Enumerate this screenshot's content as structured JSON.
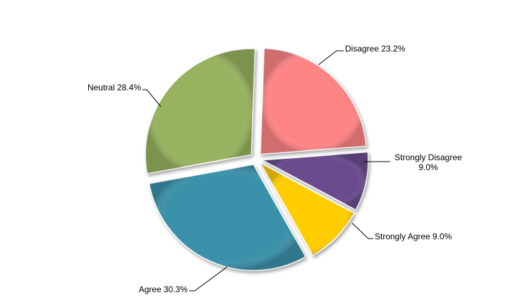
{
  "chart_data": {
    "type": "pie",
    "style": "exploded 3d-bevel",
    "slices": [
      {
        "label": "Disagree",
        "value": 23.2,
        "label_text": "Disagree 23.2%",
        "color": "#FF8585"
      },
      {
        "label": "Strongly Disagree",
        "value": 9.0,
        "label_lines": [
          "Strongly Disagree",
          "9.0%"
        ],
        "color": "#6A4C8E"
      },
      {
        "label": "Strongly Agree",
        "value": 9.0,
        "label_text": "Strongly Agree 9.0%",
        "color": "#FFCC00"
      },
      {
        "label": "Agree",
        "value": 30.3,
        "label_text": "Agree 30.3%",
        "color": "#3A91AA"
      },
      {
        "label": "Neutral",
        "value": 28.4,
        "label_text": "Neutral 28.4%",
        "color": "#97B35F"
      }
    ]
  }
}
